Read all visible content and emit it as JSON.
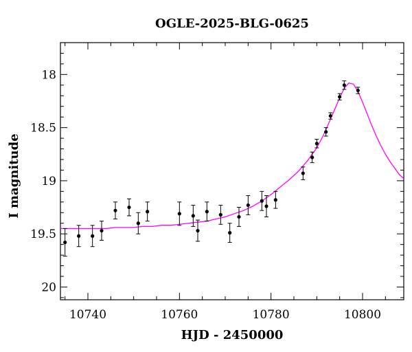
{
  "chart_data": {
    "type": "scatter",
    "title": "OGLE-2025-BLG-0625",
    "xlabel": "HJD - 2450000",
    "ylabel": "I magnitude",
    "xlim": [
      10734,
      10809
    ],
    "ylim": [
      20.12,
      17.7
    ],
    "y_inverted": true,
    "x_ticks": [
      10740,
      10760,
      10780,
      10800
    ],
    "y_ticks": [
      18,
      18.5,
      19,
      19.5,
      20
    ],
    "y_tick_labels": [
      "18",
      "18.5",
      "19",
      "19.5",
      "20"
    ],
    "grid": false,
    "colors": {
      "model": "#ff00ff",
      "points": "#000000"
    },
    "points": [
      {
        "x": 10735.0,
        "y": 19.58,
        "err": 0.13
      },
      {
        "x": 10738.0,
        "y": 19.52,
        "err": 0.1
      },
      {
        "x": 10741.0,
        "y": 19.52,
        "err": 0.1
      },
      {
        "x": 10743.0,
        "y": 19.47,
        "err": 0.09
      },
      {
        "x": 10746.0,
        "y": 19.28,
        "err": 0.08
      },
      {
        "x": 10749.0,
        "y": 19.25,
        "err": 0.08
      },
      {
        "x": 10751.0,
        "y": 19.4,
        "err": 0.1
      },
      {
        "x": 10753.0,
        "y": 19.29,
        "err": 0.09
      },
      {
        "x": 10760.0,
        "y": 19.31,
        "err": 0.11
      },
      {
        "x": 10763.0,
        "y": 19.33,
        "err": 0.1
      },
      {
        "x": 10764.0,
        "y": 19.47,
        "err": 0.1
      },
      {
        "x": 10766.0,
        "y": 19.29,
        "err": 0.09
      },
      {
        "x": 10769.0,
        "y": 19.32,
        "err": 0.09
      },
      {
        "x": 10771.0,
        "y": 19.49,
        "err": 0.09
      },
      {
        "x": 10773.0,
        "y": 19.34,
        "err": 0.09
      },
      {
        "x": 10775.0,
        "y": 19.23,
        "err": 0.09
      },
      {
        "x": 10778.0,
        "y": 19.19,
        "err": 0.09
      },
      {
        "x": 10779.0,
        "y": 19.24,
        "err": 0.1
      },
      {
        "x": 10781.0,
        "y": 19.18,
        "err": 0.08
      },
      {
        "x": 10787.0,
        "y": 18.93,
        "err": 0.06
      },
      {
        "x": 10789.0,
        "y": 18.78,
        "err": 0.05
      },
      {
        "x": 10790.0,
        "y": 18.65,
        "err": 0.04
      },
      {
        "x": 10792.0,
        "y": 18.54,
        "err": 0.04
      },
      {
        "x": 10793.0,
        "y": 18.39,
        "err": 0.03
      },
      {
        "x": 10795.0,
        "y": 18.21,
        "err": 0.03
      },
      {
        "x": 10796.0,
        "y": 18.1,
        "err": 0.04
      },
      {
        "x": 10799.0,
        "y": 18.15,
        "err": 0.03
      }
    ],
    "model": {
      "x": [
        10734,
        10736,
        10738,
        10740,
        10742,
        10744,
        10746,
        10748,
        10750,
        10752,
        10754,
        10756,
        10758,
        10760,
        10762,
        10764,
        10766,
        10768,
        10770,
        10772,
        10774,
        10776,
        10778,
        10780,
        10782,
        10784,
        10786,
        10788,
        10789,
        10790,
        10791,
        10792,
        10793,
        10794,
        10795,
        10796,
        10797,
        10798,
        10799,
        10800,
        10801,
        10802,
        10803,
        10804,
        10805,
        10806,
        10807,
        10808,
        10809
      ],
      "y": [
        19.45,
        19.45,
        19.45,
        19.45,
        19.45,
        19.45,
        19.44,
        19.44,
        19.44,
        19.43,
        19.43,
        19.42,
        19.42,
        19.41,
        19.4,
        19.39,
        19.38,
        19.36,
        19.34,
        19.31,
        19.28,
        19.24,
        19.19,
        19.13,
        19.06,
        18.99,
        18.91,
        18.81,
        18.75,
        18.69,
        18.61,
        18.52,
        18.42,
        18.32,
        18.22,
        18.13,
        18.08,
        18.09,
        18.16,
        18.26,
        18.37,
        18.48,
        18.58,
        18.67,
        18.75,
        18.82,
        18.88,
        18.94,
        18.98
      ]
    }
  }
}
